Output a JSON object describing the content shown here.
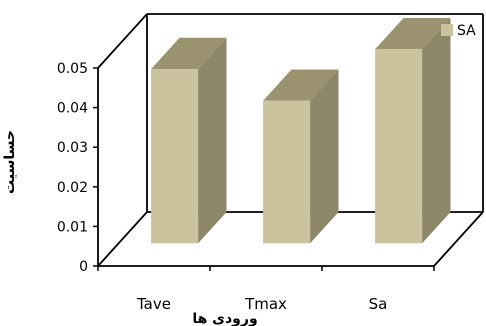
{
  "chart_data": {
    "type": "bar",
    "style": "3d-bar",
    "categories": [
      "Tave",
      "Tmax",
      "Sa"
    ],
    "series": [
      {
        "name": "SA",
        "values": [
          0.044,
          0.036,
          0.049
        ]
      }
    ],
    "ylabel": "حساسیت",
    "xlabel": "ورودی ها",
    "ylim": [
      0,
      0.05
    ],
    "y_ticks": [
      "0",
      "0.01",
      "0.02",
      "0.03",
      "0.04",
      "0.05"
    ],
    "grid": false,
    "legend_position": "top-right"
  },
  "colors": {
    "bar_front": "#CBC39D",
    "bar_top": "#9B9270",
    "bar_side": "#8D8768",
    "frame": "#000000",
    "background": "#FFFFFF"
  }
}
